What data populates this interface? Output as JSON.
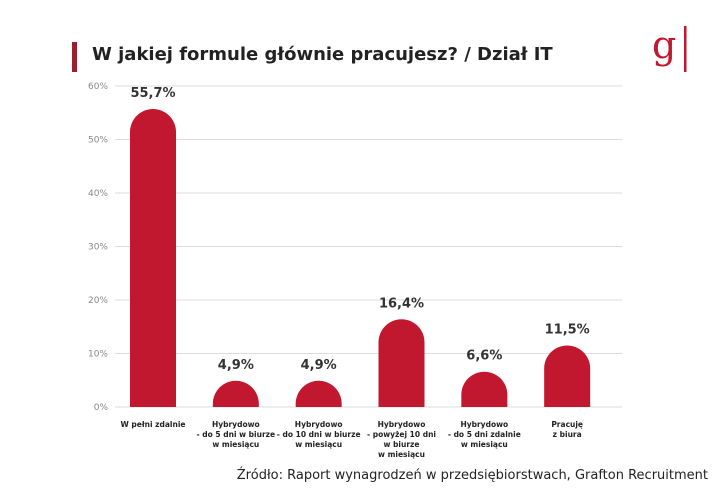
{
  "title": "W jakiej formule głównie pracujesz? / Dział IT",
  "logo_text": "g",
  "source": "Źródło: Raport wynagrodzeń w  przedsiębiorstwach, Grafton Recruitment",
  "colors": {
    "bar": "#c2182f",
    "title_bar": "#9b1f2e",
    "grid": "#dddddd",
    "logo": "#c2182f"
  },
  "chart_data": {
    "type": "bar",
    "title": "W jakiej formule głównie pracujesz? / Dział IT",
    "xlabel": "",
    "ylabel": "",
    "ylim": [
      0,
      60
    ],
    "yticks": [
      "0%",
      "10%",
      "20%",
      "30%",
      "40%",
      "50%",
      "60%"
    ],
    "grid": true,
    "categories": [
      [
        "W pełni zdalnie"
      ],
      [
        "Hybrydowo",
        "- do 5 dni w biurze",
        "w miesiącu"
      ],
      [
        "Hybrydowo",
        "- do 10 dni w biurze",
        "w miesiącu"
      ],
      [
        "Hybrydowo",
        "- powyżej 10 dni",
        "w biurze",
        "w miesiącu"
      ],
      [
        "Hybrydowo",
        "- do 5 dni zdalnie",
        "w miesiącu"
      ],
      [
        "Pracuję",
        "z biura"
      ]
    ],
    "values": [
      55.7,
      4.9,
      4.9,
      16.4,
      6.6,
      11.5
    ],
    "value_labels": [
      "55,7%",
      "4,9%",
      "4,9%",
      "16,4%",
      "6,6%",
      "11,5%"
    ]
  }
}
